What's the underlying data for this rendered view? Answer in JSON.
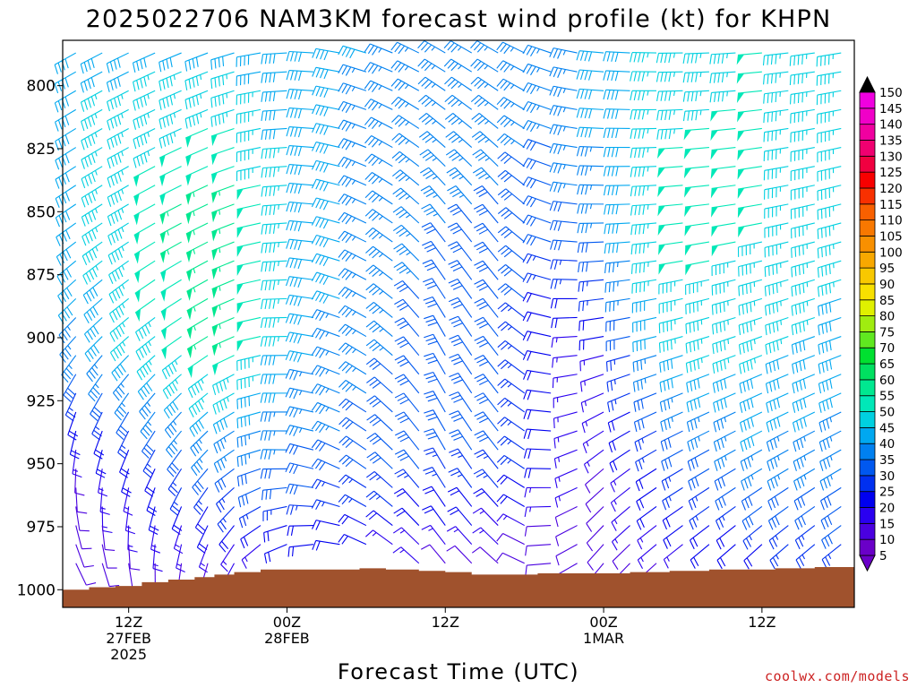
{
  "chart_data": {
    "type": "wind-barb time-height",
    "title": "2025022706 NAM3KM forecast wind profile (kt) for KHPN",
    "xlabel": "Forecast Time (UTC)",
    "ylabel": "",
    "units": "kt",
    "x_range_hours": [
      7,
      67
    ],
    "y_range_hpa": [
      1007,
      782
    ],
    "x_ticks": [
      {
        "hour": 12,
        "lines": [
          "12Z",
          "27FEB",
          "2025"
        ]
      },
      {
        "hour": 24,
        "lines": [
          "00Z",
          "28FEB"
        ]
      },
      {
        "hour": 36,
        "lines": [
          "12Z"
        ]
      },
      {
        "hour": 48,
        "lines": [
          "00Z",
          "1MAR"
        ]
      },
      {
        "hour": 60,
        "lines": [
          "12Z"
        ]
      }
    ],
    "y_ticks": [
      "800",
      "825",
      "850",
      "875",
      "900",
      "925",
      "950",
      "975",
      "1000"
    ],
    "y_tick_values": [
      800,
      825,
      850,
      875,
      900,
      925,
      950,
      975,
      1000
    ],
    "colorbar_levels": [
      5,
      10,
      15,
      20,
      25,
      30,
      35,
      40,
      45,
      50,
      55,
      60,
      65,
      70,
      75,
      80,
      85,
      90,
      95,
      100,
      105,
      110,
      115,
      120,
      125,
      130,
      135,
      140,
      145,
      150
    ],
    "colorbar_labels": [
      "5",
      "10",
      "15",
      "20",
      "25",
      "30",
      "35",
      "40",
      "45",
      "50",
      "55",
      "60",
      "65",
      "70",
      "75",
      "80",
      "85",
      "90",
      "95",
      "100",
      "105",
      "110",
      "115",
      "120",
      "125",
      "130",
      "135",
      "140",
      "145",
      "150"
    ],
    "colorbar_colors": [
      "#6a00c8",
      "#4a00e0",
      "#2a00f0",
      "#0000f0",
      "#0030f0",
      "#0058f0",
      "#0080f0",
      "#00a8f0",
      "#00d0e0",
      "#00e8b8",
      "#00e890",
      "#00e060",
      "#00e030",
      "#60e820",
      "#a0ec10",
      "#e0f000",
      "#f8e000",
      "#f8c800",
      "#f8a800",
      "#f89000",
      "#f87800",
      "#f86000",
      "#f83000",
      "#f80000",
      "#f00040",
      "#f00070",
      "#f000a0",
      "#f000c8",
      "#f000e0",
      "#f000f0"
    ],
    "terrain_color": "#a0522d",
    "surface_pressure_hpa": [
      [
        7,
        1000
      ],
      [
        9,
        999
      ],
      [
        11,
        998.5
      ],
      [
        13,
        997
      ],
      [
        15,
        996
      ],
      [
        17,
        995
      ],
      [
        18.5,
        994
      ],
      [
        20,
        993
      ],
      [
        22,
        992
      ],
      [
        24,
        992
      ],
      [
        26,
        992
      ],
      [
        28,
        992
      ],
      [
        29.5,
        991.5
      ],
      [
        31.5,
        992
      ],
      [
        34,
        992.5
      ],
      [
        36,
        993
      ],
      [
        38,
        994
      ],
      [
        41,
        994
      ],
      [
        43,
        993.5
      ],
      [
        47,
        993.5
      ],
      [
        48,
        993.5
      ],
      [
        50,
        993
      ],
      [
        53,
        992.5
      ],
      [
        56,
        992
      ],
      [
        59,
        992
      ],
      [
        61,
        991.5
      ],
      [
        64,
        991
      ],
      [
        67,
        990
      ]
    ],
    "wind_samples": {
      "hours": [
        7,
        19,
        25,
        31,
        36,
        41,
        45,
        48,
        53,
        60,
        67
      ],
      "pressures_hpa": [
        790,
        850,
        900,
        950,
        990
      ],
      "speed_kt": [
        [
          42,
          42,
          40,
          37,
          35,
          34,
          35,
          40,
          45,
          48,
          45
        ],
        [
          40,
          58,
          42,
          36,
          33,
          32,
          30,
          35,
          50,
          48,
          45
        ],
        [
          35,
          55,
          40,
          34,
          30,
          30,
          15,
          18,
          45,
          45,
          40
        ],
        [
          10,
          32,
          32,
          30,
          28,
          27,
          15,
          12,
          25,
          35,
          35
        ],
        [
          8,
          12,
          15,
          15,
          12,
          10,
          8,
          8,
          12,
          18,
          25
        ]
      ],
      "direction_deg": [
        [
          240,
          250,
          270,
          290,
          300,
          300,
          285,
          275,
          270,
          265,
          260
        ],
        [
          235,
          245,
          270,
          300,
          320,
          320,
          280,
          270,
          265,
          260,
          255
        ],
        [
          220,
          240,
          275,
          305,
          330,
          320,
          270,
          260,
          255,
          250,
          250
        ],
        [
          180,
          225,
          280,
          310,
          330,
          320,
          255,
          230,
          240,
          240,
          240
        ],
        [
          150,
          200,
          250,
          300,
          320,
          310,
          250,
          220,
          230,
          225,
          230
        ]
      ]
    }
  },
  "credit": "coolwx.com/models"
}
